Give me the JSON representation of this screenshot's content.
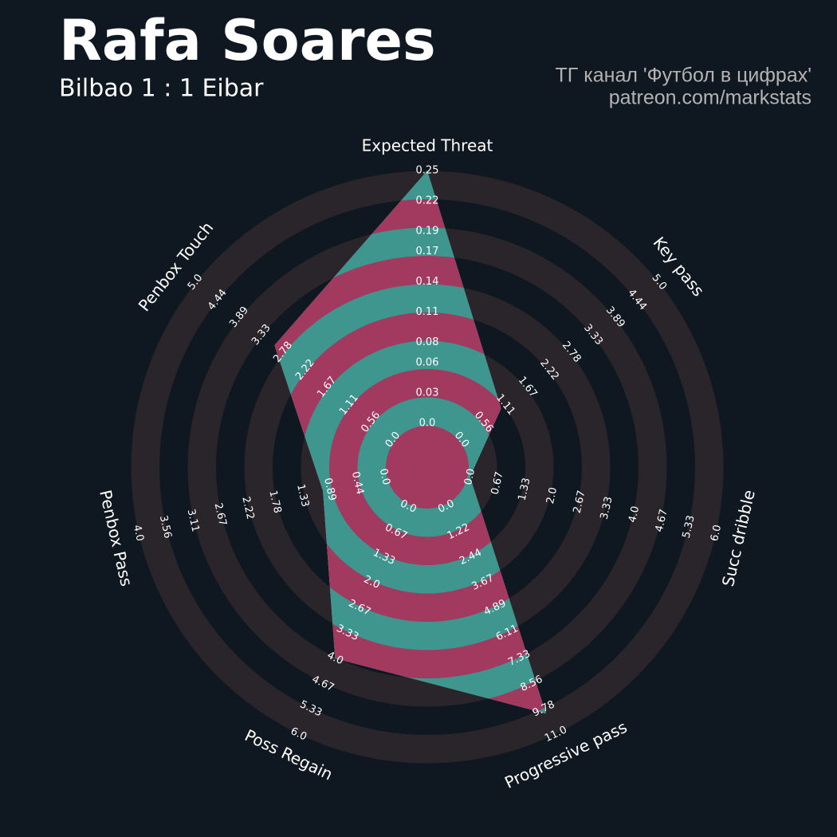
{
  "chart_data": {
    "type": "radar",
    "title": "Rafa Soares",
    "subtitle": "Bilbao 1 : 1 Eibar",
    "credits": [
      "ТГ канал 'Футбол в цифрах'",
      "patreon.com/markstats"
    ],
    "categories": [
      "Expected Threat",
      "Key pass",
      "Succ dribble",
      "Progressive pass",
      "Poss Regain",
      "Penbox Pass",
      "Penbox Touch"
    ],
    "values": [
      0.25,
      1,
      0,
      10,
      4,
      1,
      3
    ],
    "ranges": [
      [
        0,
        0.25
      ],
      [
        0,
        5
      ],
      [
        0,
        6
      ],
      [
        0,
        11
      ],
      [
        0,
        6
      ],
      [
        0,
        4
      ],
      [
        0,
        5
      ]
    ],
    "axis_ticks": [
      [
        {
          "value": 0,
          "label": "0.0"
        },
        0.03,
        0.06,
        0.08,
        0.11,
        0.14,
        0.17,
        0.19,
        0.22,
        0.25
      ],
      [
        {
          "value": 0,
          "label": "0.0"
        },
        0.56,
        1.11,
        1.67,
        2.22,
        2.78,
        3.33,
        3.89,
        4.44,
        {
          "value": 5,
          "label": "5.0"
        }
      ],
      [
        {
          "value": 0,
          "label": "0.0"
        },
        0.67,
        1.33,
        {
          "value": 2,
          "label": "2.0"
        },
        2.67,
        3.33,
        {
          "value": 4,
          "label": "4.0"
        },
        4.67,
        5.33,
        {
          "value": 6,
          "label": "6.0"
        }
      ],
      [
        {
          "value": 0,
          "label": "0.0"
        },
        1.22,
        2.44,
        3.67,
        4.89,
        6.11,
        7.33,
        8.56,
        9.78,
        {
          "value": 11,
          "label": "11.0"
        }
      ],
      [
        {
          "value": 0,
          "label": "0.0"
        },
        0.67,
        1.33,
        {
          "value": 2,
          "label": "2.0"
        },
        2.67,
        3.33,
        {
          "value": 4,
          "label": "4.0"
        },
        4.67,
        5.33,
        {
          "value": 6,
          "label": "6.0"
        }
      ],
      [
        {
          "value": 0,
          "label": "0.0"
        },
        0.44,
        0.89,
        1.33,
        1.78,
        2.22,
        2.67,
        3.11,
        3.56,
        {
          "value": 4,
          "label": "4.0"
        }
      ],
      [
        {
          "value": 0,
          "label": "0.0"
        },
        0.56,
        1.11,
        1.67,
        2.22,
        2.78,
        3.33,
        3.89,
        4.44,
        {
          "value": 5,
          "label": "5.0"
        }
      ]
    ],
    "color": "#3e968f",
    "ring_color": "#a2395f",
    "background_ring_color": "#29252a"
  }
}
